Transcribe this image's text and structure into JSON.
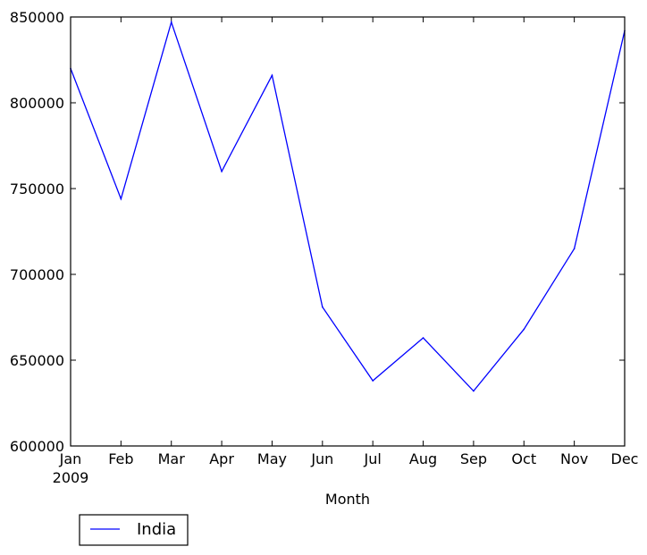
{
  "chart_data": {
    "type": "line",
    "title": "",
    "xlabel": "Month",
    "ylabel": "",
    "categories": [
      "Jan",
      "Feb",
      "Mar",
      "Apr",
      "May",
      "Jun",
      "Jul",
      "Aug",
      "Sep",
      "Oct",
      "Nov",
      "Dec"
    ],
    "year_label": "2009",
    "series": [
      {
        "name": "India",
        "color": "#0000ff",
        "values": [
          820000,
          744000,
          847000,
          760000,
          816000,
          681000,
          638000,
          663000,
          632000,
          668000,
          715000,
          842000
        ]
      }
    ],
    "ylim": [
      600000,
      850000
    ],
    "yticks": [
      "600000",
      "650000",
      "700000",
      "750000",
      "800000",
      "850000"
    ],
    "grid": false,
    "legend_placement": "below-left"
  }
}
